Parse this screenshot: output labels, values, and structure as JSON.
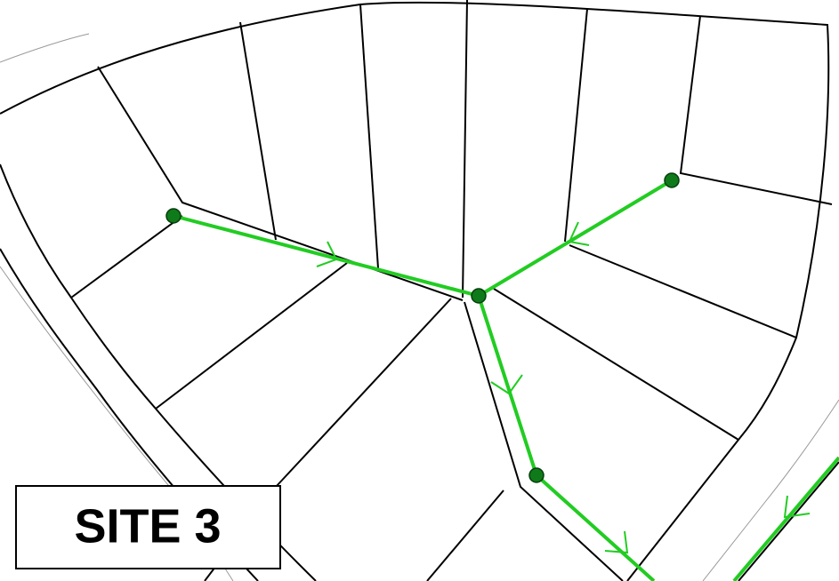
{
  "label": "SITE 3"
}
